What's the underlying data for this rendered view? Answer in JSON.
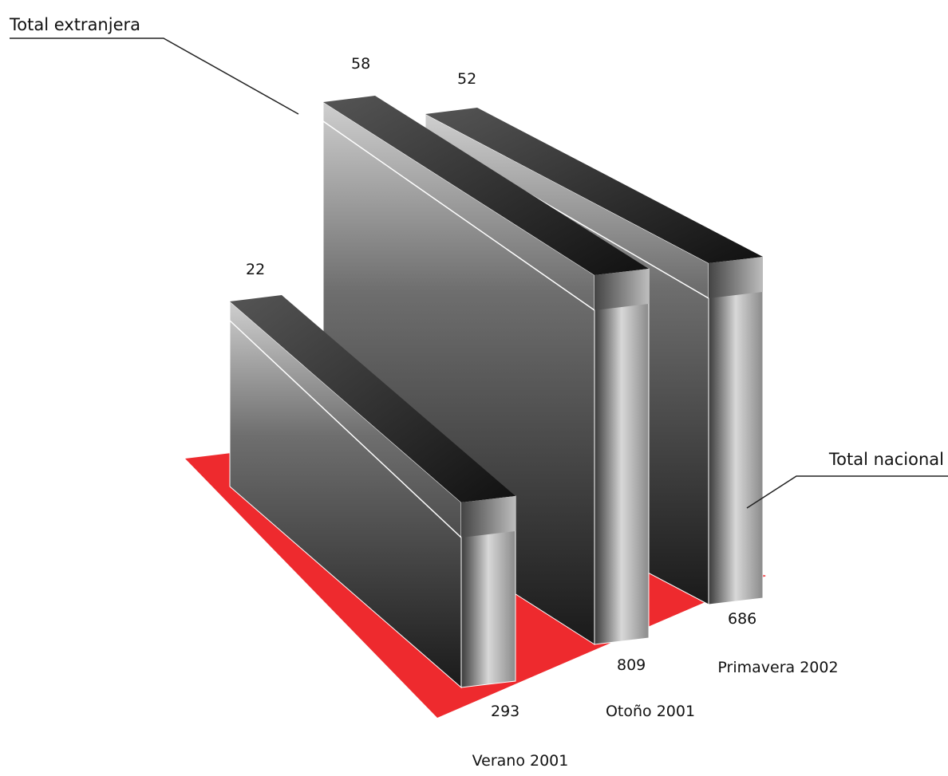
{
  "chart_data": {
    "type": "bar",
    "style": "3d",
    "categories": [
      "Verano 2001",
      "Otoño 2001",
      "Primavera 2002"
    ],
    "series": [
      {
        "name": "Total extranjera",
        "values": [
          22,
          58,
          52
        ]
      },
      {
        "name": "Total nacional",
        "values": [
          293,
          809,
          686
        ]
      }
    ],
    "floor_color": "#ee2a2e",
    "bar_color": "#5a5a5a"
  }
}
